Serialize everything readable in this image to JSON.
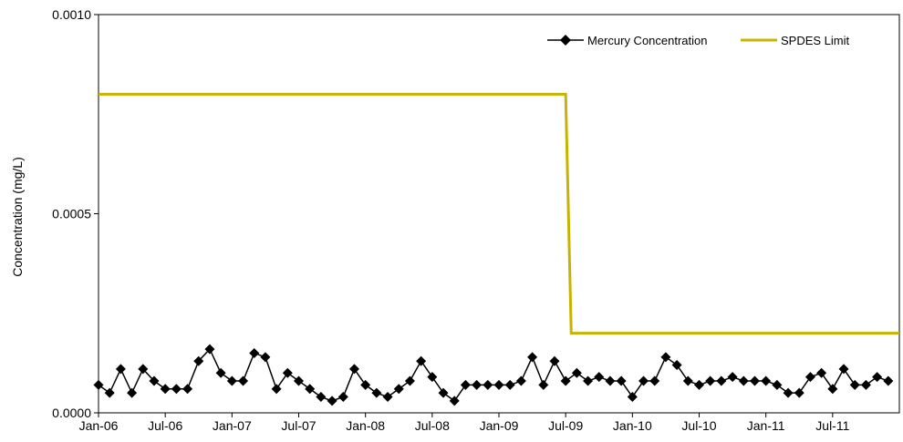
{
  "chart_data": {
    "type": "line",
    "title": "",
    "xlabel": "",
    "ylabel": "Concentration (mg/L)",
    "ylim": [
      0,
      0.001
    ],
    "yticks": [
      "0.0000",
      "0.0005",
      "0.0010"
    ],
    "xticks": [
      "Jan-06",
      "Jul-06",
      "Jan-07",
      "Jul-07",
      "Jan-08",
      "Jul-08",
      "Jan-09",
      "Jul-09",
      "Jan-10",
      "Jul-10",
      "Jan-11",
      "Jul-11"
    ],
    "grid": false,
    "legend": "top-right",
    "series": [
      {
        "name": "Mercury Concentration",
        "color": "#000000",
        "marker": "diamond",
        "x_month_index_start": 0,
        "values": [
          7e-05,
          5e-05,
          0.00011,
          5e-05,
          0.00011,
          8e-05,
          6e-05,
          6e-05,
          6e-05,
          0.00013,
          0.00016,
          0.0001,
          8e-05,
          8e-05,
          0.00015,
          0.00014,
          6e-05,
          0.0001,
          8e-05,
          6e-05,
          4e-05,
          3e-05,
          4e-05,
          0.00011,
          7e-05,
          5e-05,
          4e-05,
          6e-05,
          8e-05,
          0.00013,
          9e-05,
          5e-05,
          3e-05,
          7e-05,
          7e-05,
          7e-05,
          7e-05,
          7e-05,
          8e-05,
          0.00014,
          7e-05,
          0.00013,
          8e-05,
          0.0001,
          8e-05,
          9e-05,
          8e-05,
          8e-05,
          4e-05,
          8e-05,
          8e-05,
          0.00014,
          0.00012,
          8e-05,
          7e-05,
          8e-05,
          8e-05,
          9e-05,
          8e-05,
          8e-05,
          8e-05,
          7e-05,
          5e-05,
          5e-05,
          9e-05,
          0.0001,
          6e-05,
          0.00011,
          7e-05,
          7e-05,
          9e-05,
          8e-05
        ]
      },
      {
        "name": "SPDES Limit",
        "color": "#c9b200",
        "marker": "none",
        "points": [
          [
            0,
            0.0008
          ],
          [
            42,
            0.0008
          ],
          [
            42.5,
            0.0002
          ],
          [
            72,
            0.0002
          ]
        ]
      }
    ]
  }
}
